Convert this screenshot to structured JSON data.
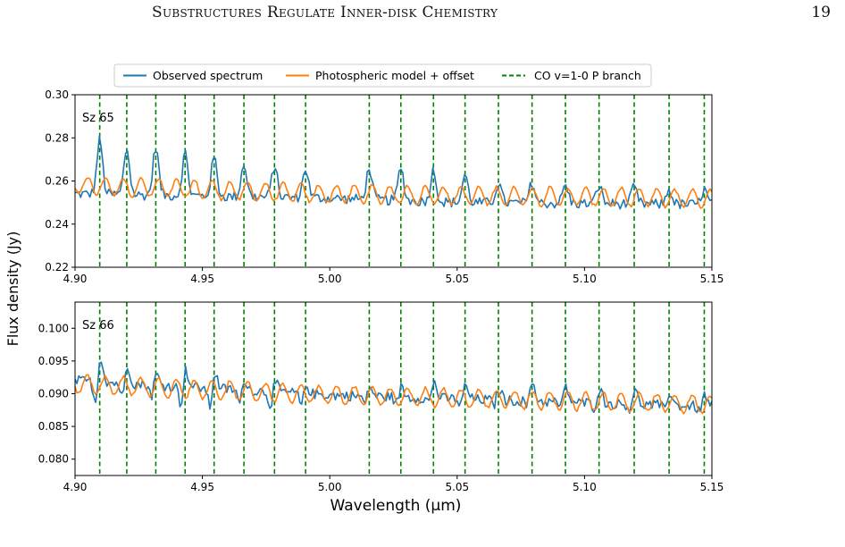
{
  "page": {
    "running_head": "Substructures Regulate Inner-disk Chemistry",
    "page_number": "19"
  },
  "chart_data": {
    "type": "line",
    "xlabel": "Wavelength (μm)",
    "ylabel": "Flux density (Jy)",
    "legend": {
      "placement": "top-center",
      "entries": [
        {
          "label": "Observed spectrum",
          "color": "#1f77b4",
          "style": "solid"
        },
        {
          "label": "Photospheric model + offset",
          "color": "#ff7f0e",
          "style": "solid"
        },
        {
          "label": "CO v=1-0 P branch",
          "color": "#008000",
          "style": "dashed"
        }
      ]
    },
    "co_lines": [
      4.9097,
      4.9203,
      4.9317,
      4.9432,
      4.9546,
      4.9663,
      4.9783,
      4.9905,
      5.0155,
      5.0279,
      5.0407,
      5.0531,
      5.0662,
      5.0794,
      5.0925,
      5.1057,
      5.1195,
      5.1332,
      5.147
    ],
    "panels": [
      {
        "label": "Sz 65",
        "xlim": [
          4.9,
          5.15
        ],
        "ylim": [
          0.22,
          0.3
        ],
        "x_ticks": [
          "4.90",
          "4.95",
          "5.00",
          "5.05",
          "5.10",
          "5.15"
        ],
        "y_ticks": [
          "0.22",
          "0.24",
          "0.26",
          "0.28",
          "0.30"
        ],
        "observed_baseline": [
          [
            4.9,
            0.254
          ],
          [
            5.0,
            0.252
          ],
          [
            5.05,
            0.25
          ],
          [
            5.15,
            0.249
          ]
        ],
        "emission_peaks": [
          0.279,
          0.275,
          0.276,
          0.273,
          0.271,
          0.268,
          0.267,
          0.266,
          0.266,
          0.266,
          0.265,
          0.263,
          0.259,
          0.259,
          0.258,
          0.258,
          0.257,
          0.256,
          0.256
        ],
        "model_level": [
          [
            4.9,
            0.258
          ],
          [
            5.0,
            0.254
          ],
          [
            5.15,
            0.252
          ]
        ]
      },
      {
        "label": "Sz 66",
        "xlim": [
          4.9,
          5.15
        ],
        "ylim": [
          0.0775,
          0.104
        ],
        "x_ticks": [
          "4.90",
          "4.95",
          "5.00",
          "5.05",
          "5.10",
          "5.15"
        ],
        "y_ticks": [
          "0.080",
          "0.085",
          "0.090",
          "0.095",
          "0.100"
        ],
        "observed_baseline": [
          [
            4.9,
            0.092
          ],
          [
            5.0,
            0.0898
          ],
          [
            5.15,
            0.088
          ]
        ],
        "emission_peaks": [
          0.0962,
          0.0948,
          0.0932,
          0.094,
          0.0936,
          0.0925,
          0.092,
          0.0915,
          0.0912,
          0.0912,
          0.092,
          0.0915,
          0.091,
          0.092,
          0.0912,
          0.091,
          0.0908,
          0.0905,
          0.09
        ],
        "absorption_dips": [
          0.0858,
          0.0875,
          0.0885,
          0.0865,
          0.086,
          0.087,
          0.0868,
          0.087,
          0.0875,
          0.0875,
          0.0875,
          0.087,
          0.0872,
          0.087,
          0.087,
          0.0868,
          0.0865,
          0.0865,
          0.0862
        ],
        "model_level": [
          [
            4.9,
            0.0915
          ],
          [
            5.0,
            0.0898
          ],
          [
            5.15,
            0.0884
          ]
        ]
      }
    ]
  }
}
